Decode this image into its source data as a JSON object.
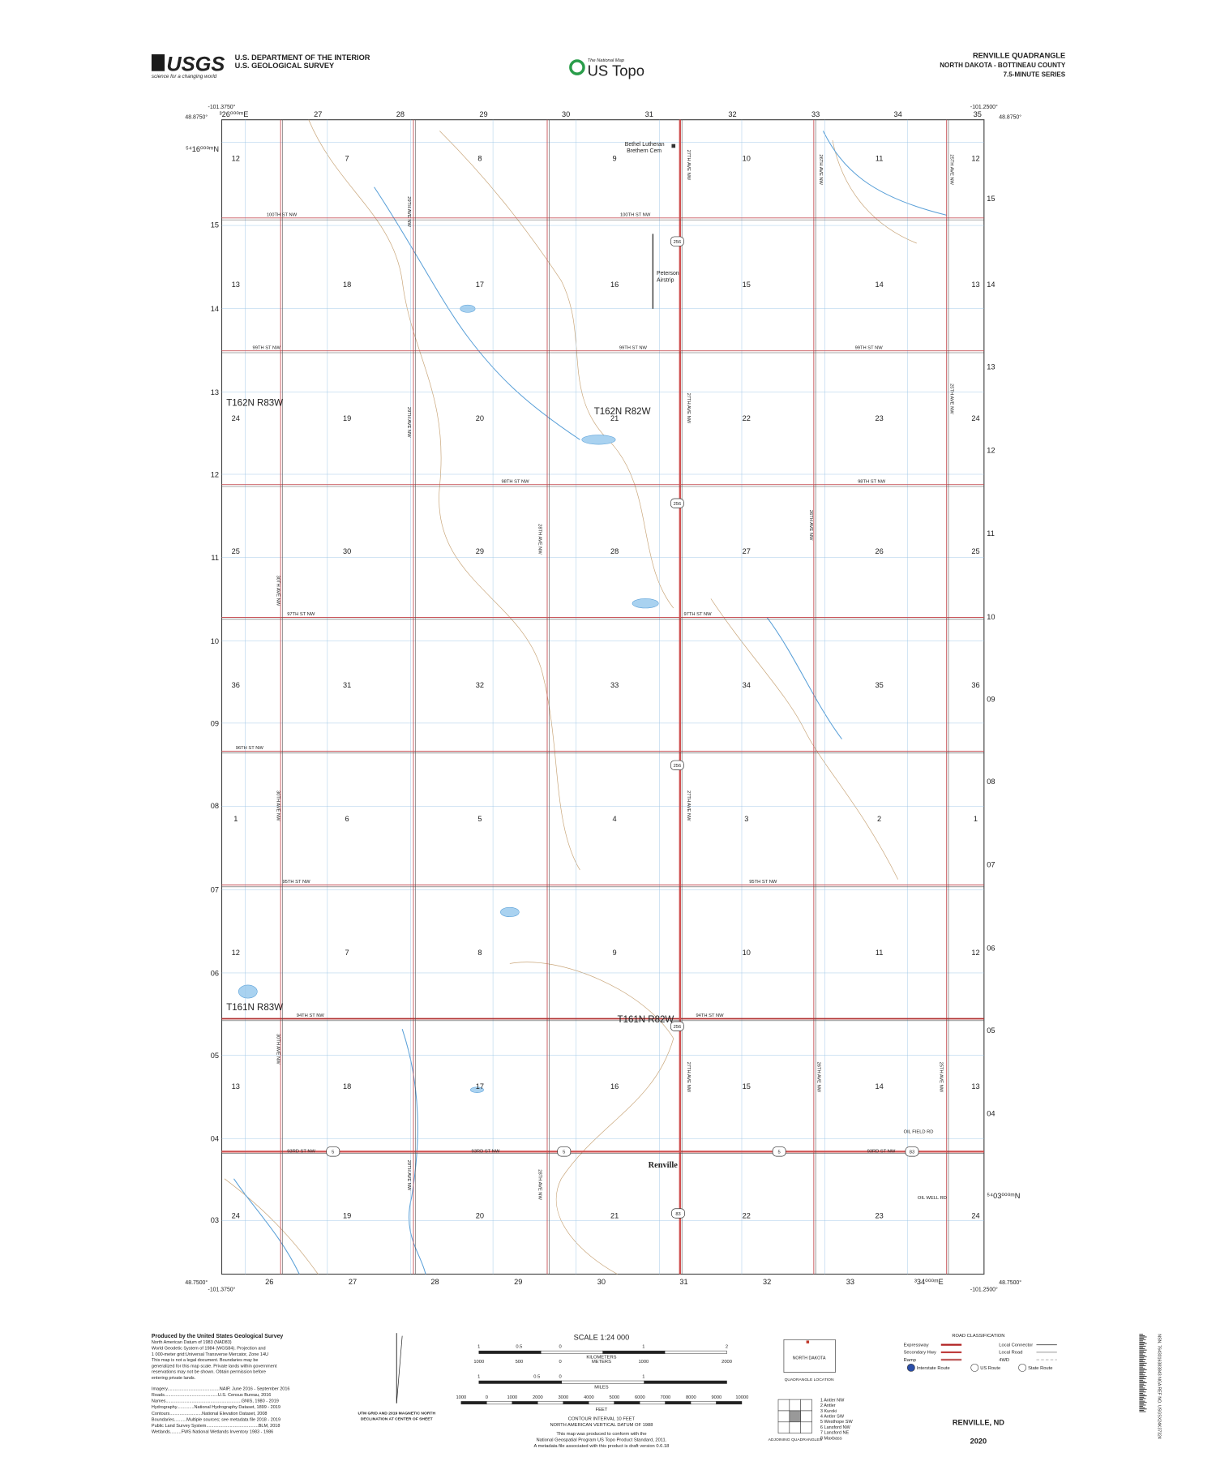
{
  "header": {
    "logo": "USGS",
    "logo_tag": "science for a changing world",
    "agency_line1": "U.S. DEPARTMENT OF THE INTERIOR",
    "agency_line2": "U.S. GEOLOGICAL SURVEY",
    "brand_small": "The National Map",
    "brand": "US Topo",
    "quad_title": "RENVILLE QUADRANGLE",
    "state_county": "NORTH DAKOTA - BOTTINEAU COUNTY",
    "series": "7.5-MINUTE SERIES"
  },
  "map": {
    "corners": [
      "-101.3750°",
      "48.8750°",
      "-101.2500°",
      "48.8750°",
      "48.7500°",
      "-101.3750°",
      "48.7500°",
      "-101.2500°"
    ],
    "top_ticks": [
      "³26⁰⁰⁰ᵐE",
      "27",
      "28",
      "29",
      "30",
      "31",
      "32",
      "33",
      "34",
      "35"
    ],
    "bottom_ticks": [
      "26",
      "27",
      "28",
      "29",
      "30",
      "31",
      "32",
      "33",
      "³34⁰⁰⁰ᵐE"
    ],
    "left_ticks": [
      "⁵⁴16⁰⁰⁰ᵐN",
      "15",
      "14",
      "13",
      "12",
      "11",
      "10",
      "09",
      "08",
      "07",
      "06",
      "05",
      "04",
      "03"
    ],
    "right_ticks": [
      "15",
      "14",
      "13",
      "12",
      "11",
      "10",
      "09",
      "08",
      "07",
      "06",
      "05",
      "04",
      "⁵⁴03⁰⁰⁰ᵐN"
    ],
    "sections": [
      [
        "12",
        "7",
        "8",
        "9",
        "10",
        "11",
        "12"
      ],
      [
        "13",
        "18",
        "17",
        "16",
        "15",
        "14",
        "13"
      ],
      [
        "24",
        "19",
        "20",
        "21",
        "22",
        "23",
        "24"
      ],
      [
        "25",
        "30",
        "29",
        "28",
        "27",
        "26",
        "25"
      ],
      [
        "36",
        "31",
        "32",
        "33",
        "34",
        "35",
        "36"
      ],
      [
        "1",
        "6",
        "5",
        "4",
        "3",
        "2",
        "1"
      ],
      [
        "12",
        "7",
        "8",
        "9",
        "10",
        "11",
        "12"
      ],
      [
        "13",
        "18",
        "17",
        "16",
        "15",
        "14",
        "13"
      ],
      [
        "24",
        "19",
        "20",
        "21",
        "22",
        "23",
        "24"
      ]
    ],
    "townships": [
      "T162N R83W",
      "T162N R82W",
      "T161N R83W",
      "T161N R82W"
    ],
    "street_labels": [
      "100TH ST NW",
      "100TH ST NW",
      "99TH ST NW",
      "99TH ST NW",
      "99TH ST NW",
      "98TH ST NW",
      "98TH ST NW",
      "97TH ST NW",
      "97TH ST NW",
      "96TH ST NW",
      "95TH ST NW",
      "95TH ST NW",
      "94TH ST NW",
      "94TH ST NW",
      "93RD ST NW",
      "93RD ST NW",
      "93RD ST NW",
      "OIL FIELD RD",
      "OIL FIELD RD",
      "OIL WELL RD"
    ],
    "avenue_labels": [
      "27TH AVE NW",
      "27TH AVE NW",
      "27TH AVE NW",
      "27TH AVE NW",
      "26TH AVE NW",
      "26TH AVE NW",
      "26TH AVE NW",
      "25TH AVE NW",
      "25TH AVE NW",
      "25TH AVE NW",
      "29TH AVE NW",
      "29TH AVE NW",
      "29TH AVE NW",
      "30TH AVE NW",
      "30TH AVE NW",
      "30TH AVE NW",
      "28TH AVE NW",
      "28TH AVE NW"
    ],
    "shields": [
      "256",
      "256",
      "256",
      "256",
      "5",
      "5",
      "5",
      "83",
      "83"
    ],
    "places": [
      "Bethel Lutheran",
      "Brethern Cem",
      "Peterson",
      "Airstrip",
      "Renville"
    ]
  },
  "footer": {
    "credits": [
      "Produced by the United States Geological Survey",
      "North American Datum of 1983 (NAD83)",
      "World Geodetic System of 1984 (WGS84). Projection and",
      "1 000-meter grid:Universal Transverse Mercator, Zone 14U",
      "This map is not a legal document. Boundaries may be",
      "generalized for this map scale. Private lands within government",
      "reservations may not be shown. Obtain permission before",
      "entering private lands.",
      "Imagery..........................................NAIP, June 2016 - September 2016",
      "Roads...........................................U.S. Census Bureau, 2016",
      "Names.............................................................GNIS, 1980 - 2019",
      "Hydrography..............National Hydrography Dataset, 1899 - 2019",
      "Contours..........................National Elevation Dataset, 2008",
      "Boundaries..........Multiple sources; see metadata file 2018 - 2019",
      "Public Land Survey System..........................................BLM, 2018",
      "Wetlands.........FWS National Wetlands Inventory 1983 - 1986"
    ],
    "declination": [
      "UTM GRID AND 2019 MAGNETIC NORTH",
      "DECLINATION AT CENTER OF SHEET"
    ],
    "scale_title": "SCALE 1:24 000",
    "km_labels": [
      "1",
      "0.5",
      "0",
      "1",
      "2"
    ],
    "km_unit": "KILOMETERS",
    "m_labels": [
      "1000",
      "500",
      "0",
      "1000",
      "2000"
    ],
    "m_unit": "METERS",
    "mi_labels": [
      "1",
      "0.5",
      "0",
      "1"
    ],
    "mi_unit": "MILES",
    "ft_labels": [
      "1000",
      "0",
      "1000",
      "2000",
      "3000",
      "4000",
      "5000",
      "6000",
      "7000",
      "8000",
      "9000",
      "10000"
    ],
    "ft_unit": "FEET",
    "notes": [
      "CONTOUR INTERVAL 10 FEET",
      "NORTH AMERICAN VERTICAL DATUM OF 1988",
      "This map was produced to conform with the",
      "National Geospatial Program US Topo Product Standard, 2011.",
      "A metadata file associated with this product is draft version 0.6.18"
    ],
    "location_state": "NORTH DAKOTA",
    "location_caption": "QUADRANGLE LOCATION",
    "adjoining_caption": "ADJOINING QUADRANGLES",
    "adjoining": [
      "1 Antler NW",
      "2 Antler",
      "3 Kuroki",
      "4 Antler SW",
      "5 Westhope SW",
      "6 Lansford NW",
      "7 Lansford NE",
      "8 Maxbass"
    ],
    "road_title": "ROAD CLASSIFICATION",
    "road_classes": [
      "Expressway",
      "Secondary Hwy",
      "Ramp",
      "Local Connector",
      "Local Road",
      "4WD"
    ],
    "route_types": [
      "Interstate Route",
      "US Route",
      "State Route"
    ],
    "sheet_name": "RENVILLE, ND",
    "year": "2020",
    "barcode_text": "NSN. 7643016383843 NGA REF NO. USGSX24K37324"
  }
}
